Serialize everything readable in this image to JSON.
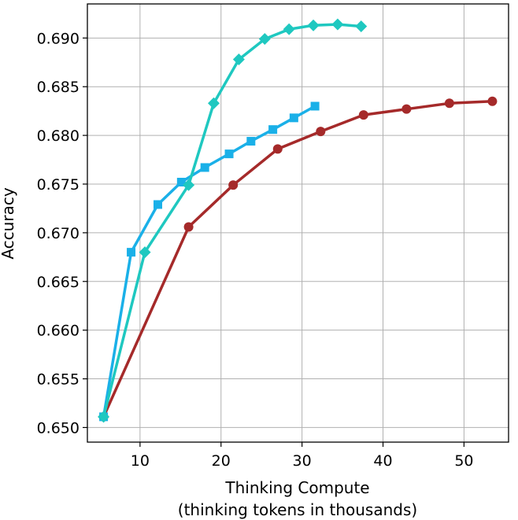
{
  "chart_data": {
    "type": "line",
    "title": "",
    "xlabel_line1": "Thinking Compute",
    "xlabel_line2": "(thinking tokens in thousands)",
    "ylabel": "Accuracy",
    "xlim": [
      3.5,
      55.5
    ],
    "ylim": [
      0.6485,
      0.6935
    ],
    "xticks": [
      10,
      20,
      30,
      40,
      50
    ],
    "yticks": [
      0.65,
      0.655,
      0.66,
      0.665,
      0.67,
      0.675,
      0.68,
      0.685,
      0.69
    ],
    "ytick_labels": [
      "0.650",
      "0.655",
      "0.660",
      "0.665",
      "0.670",
      "0.675",
      "0.680",
      "0.685",
      "0.690"
    ],
    "grid": true,
    "series": [
      {
        "color": "#a52a2a",
        "marker": "circle",
        "x": [
          5.5,
          16.0,
          21.5,
          27.0,
          32.3,
          37.6,
          42.9,
          48.2,
          53.5
        ],
        "y": [
          0.6511,
          0.6706,
          0.6749,
          0.6786,
          0.6804,
          0.6821,
          0.6827,
          0.6833,
          0.6835
        ]
      },
      {
        "color": "#1ab0e8",
        "marker": "square",
        "x": [
          5.5,
          8.9,
          12.2,
          15.1,
          18.0,
          21.0,
          23.7,
          26.4,
          29.0,
          31.6
        ],
        "y": [
          0.6511,
          0.668,
          0.6729,
          0.6752,
          0.6767,
          0.6781,
          0.6794,
          0.6806,
          0.6818,
          0.683
        ]
      },
      {
        "color": "#1fc8c0",
        "marker": "diamond",
        "x": [
          5.5,
          10.6,
          16.0,
          19.1,
          22.2,
          25.4,
          28.4,
          31.4,
          34.4,
          37.3
        ],
        "y": [
          0.6511,
          0.668,
          0.6749,
          0.6833,
          0.6878,
          0.6899,
          0.6909,
          0.6913,
          0.6914,
          0.6912
        ]
      }
    ]
  }
}
